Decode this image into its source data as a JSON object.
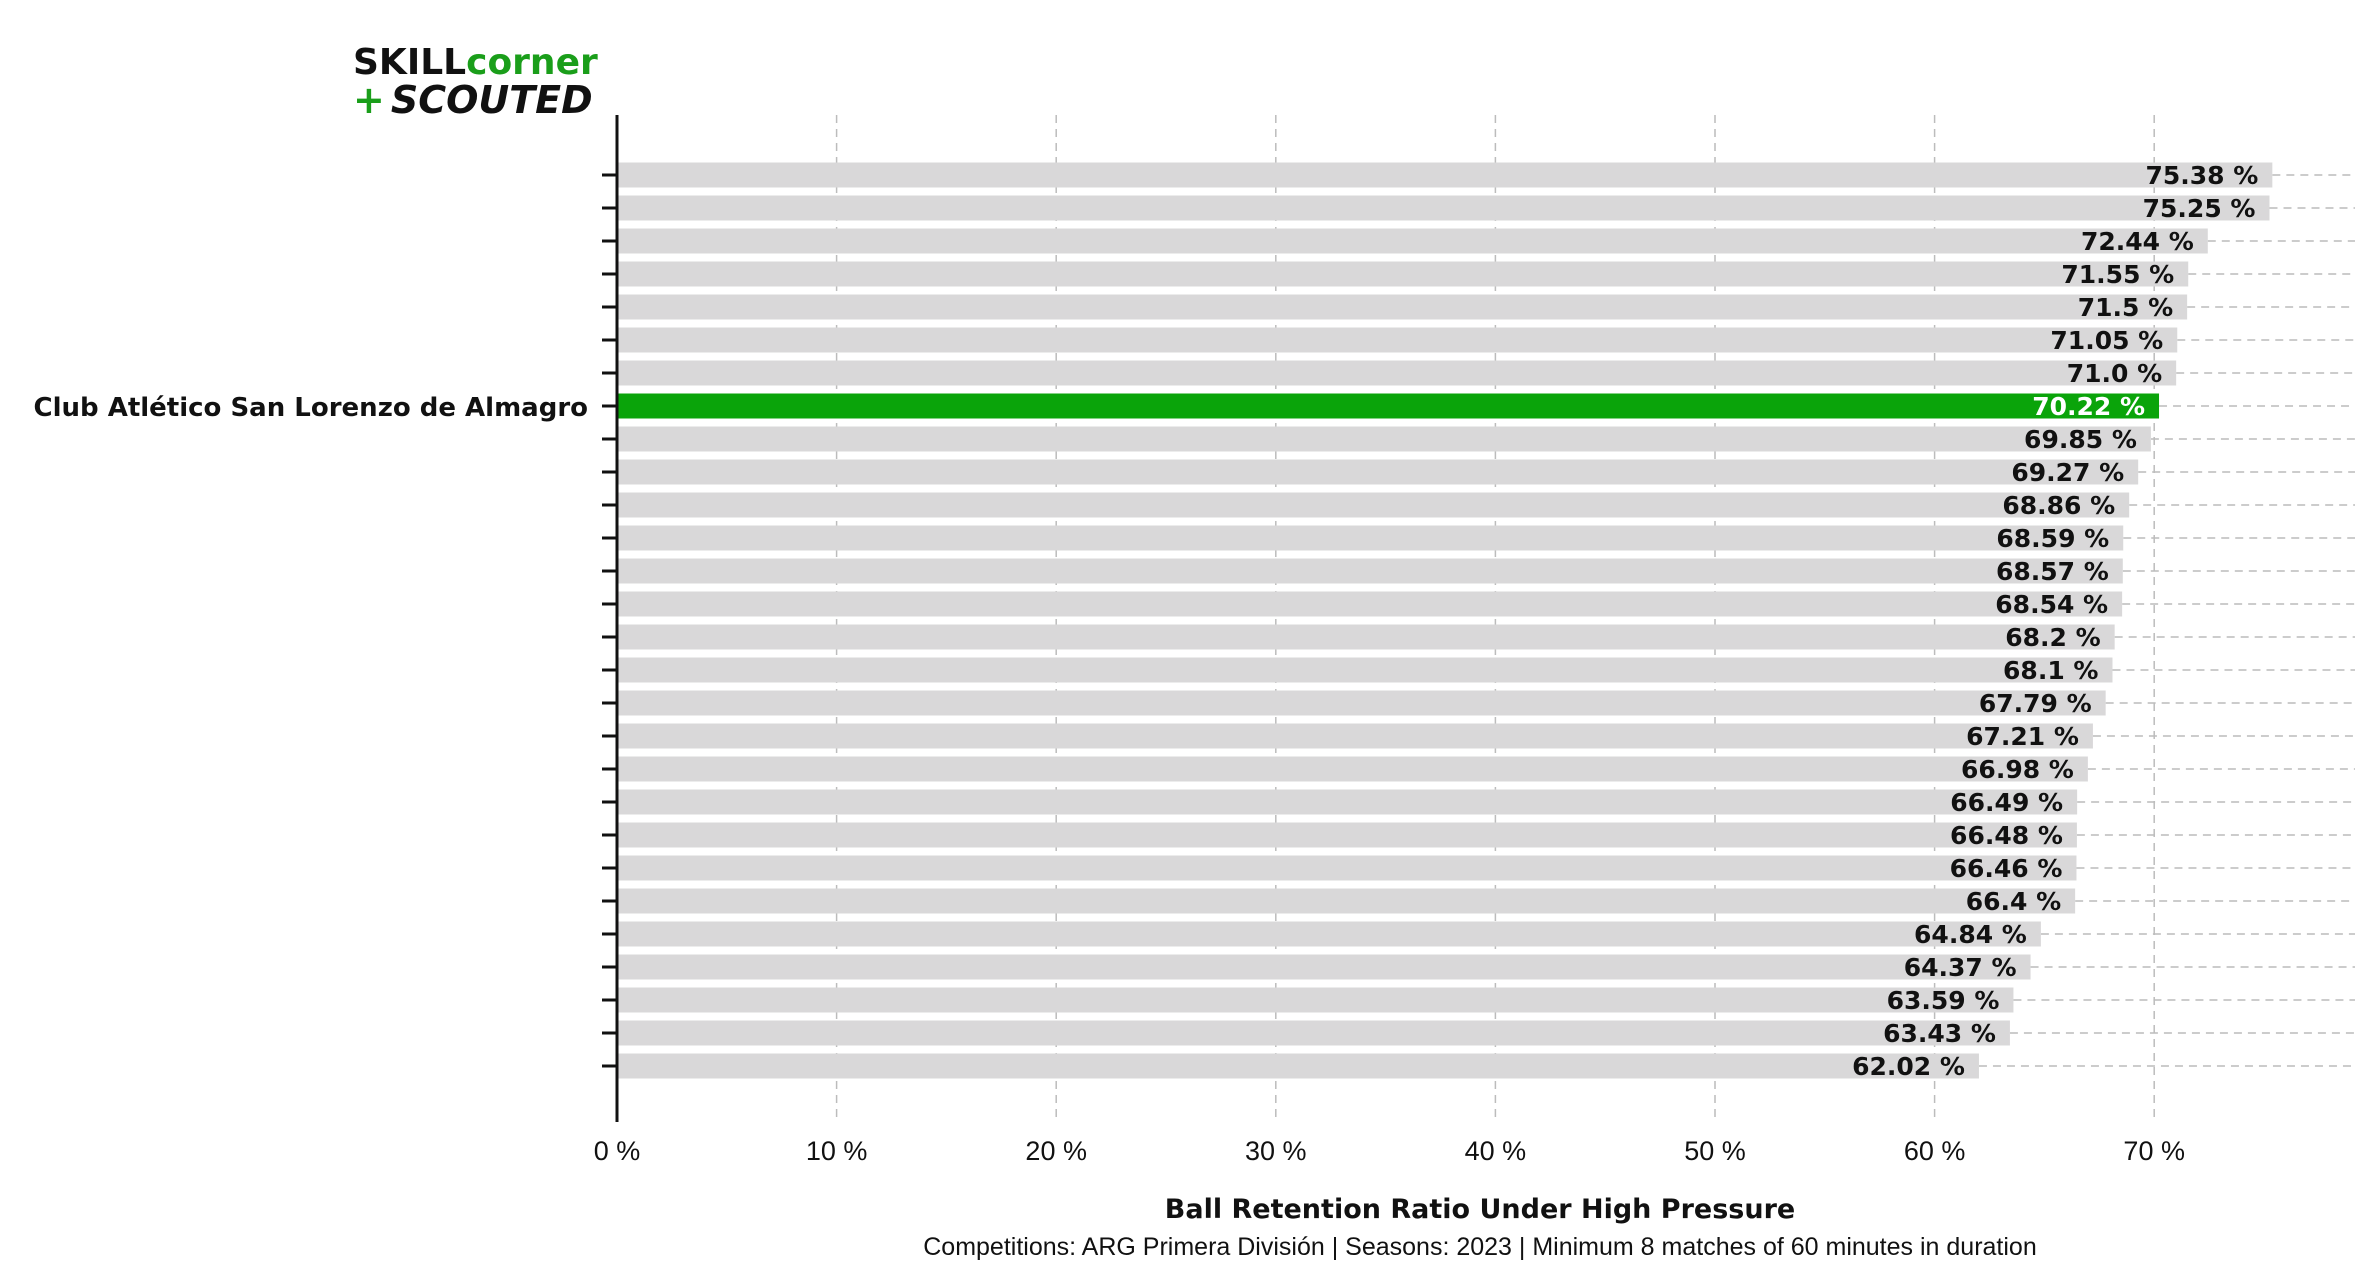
{
  "logo": {
    "line1_a": "SKILL",
    "line1_b": "corner",
    "line2_plus": "+",
    "line2_text": "SCOUTED",
    "colors": {
      "dark": "#111111",
      "green": "#1a9e1a"
    }
  },
  "chart_data": {
    "type": "bar",
    "orientation": "horizontal",
    "highlight_label": "Club Atlético San Lorenzo de Almagro",
    "highlight_index": 7,
    "values": [
      75.38,
      75.25,
      72.44,
      71.55,
      71.5,
      71.05,
      71.0,
      70.22,
      69.85,
      69.27,
      68.86,
      68.59,
      68.57,
      68.54,
      68.2,
      68.1,
      67.79,
      67.21,
      66.98,
      66.49,
      66.48,
      66.46,
      66.4,
      64.84,
      64.37,
      63.59,
      63.43,
      62.02
    ],
    "value_labels": [
      "75.38 %",
      "75.25 %",
      "72.44 %",
      "71.55 %",
      "71.5 %",
      "71.05 %",
      "71.0 %",
      "70.22 %",
      "69.85 %",
      "69.27 %",
      "68.86 %",
      "68.59 %",
      "68.57 %",
      "68.54 %",
      "68.2 %",
      "68.1 %",
      "67.79 %",
      "67.21 %",
      "66.98 %",
      "66.49 %",
      "66.48 %",
      "66.46 %",
      "66.4 %",
      "64.84 %",
      "64.37 %",
      "63.59 %",
      "63.43 %",
      "62.02 %"
    ],
    "xlim": [
      0,
      79
    ],
    "xticks": [
      0,
      10,
      20,
      30,
      40,
      50,
      60,
      70
    ],
    "xtick_labels": [
      "0 %",
      "10 %",
      "20 %",
      "30 %",
      "40 %",
      "50 %",
      "60 %",
      "70 %"
    ],
    "xlabel": "Ball Retention Ratio Under High Pressure",
    "subtitle": "Competitions: ARG Primera División | Seasons: 2023 | Minimum 8 matches of 60 minutes in duration",
    "grid": "x dashed",
    "colors": {
      "bar": "#d9d8d9",
      "highlight": "#0aa40a",
      "grid": "#bcbcbc",
      "axis": "#111111"
    }
  }
}
